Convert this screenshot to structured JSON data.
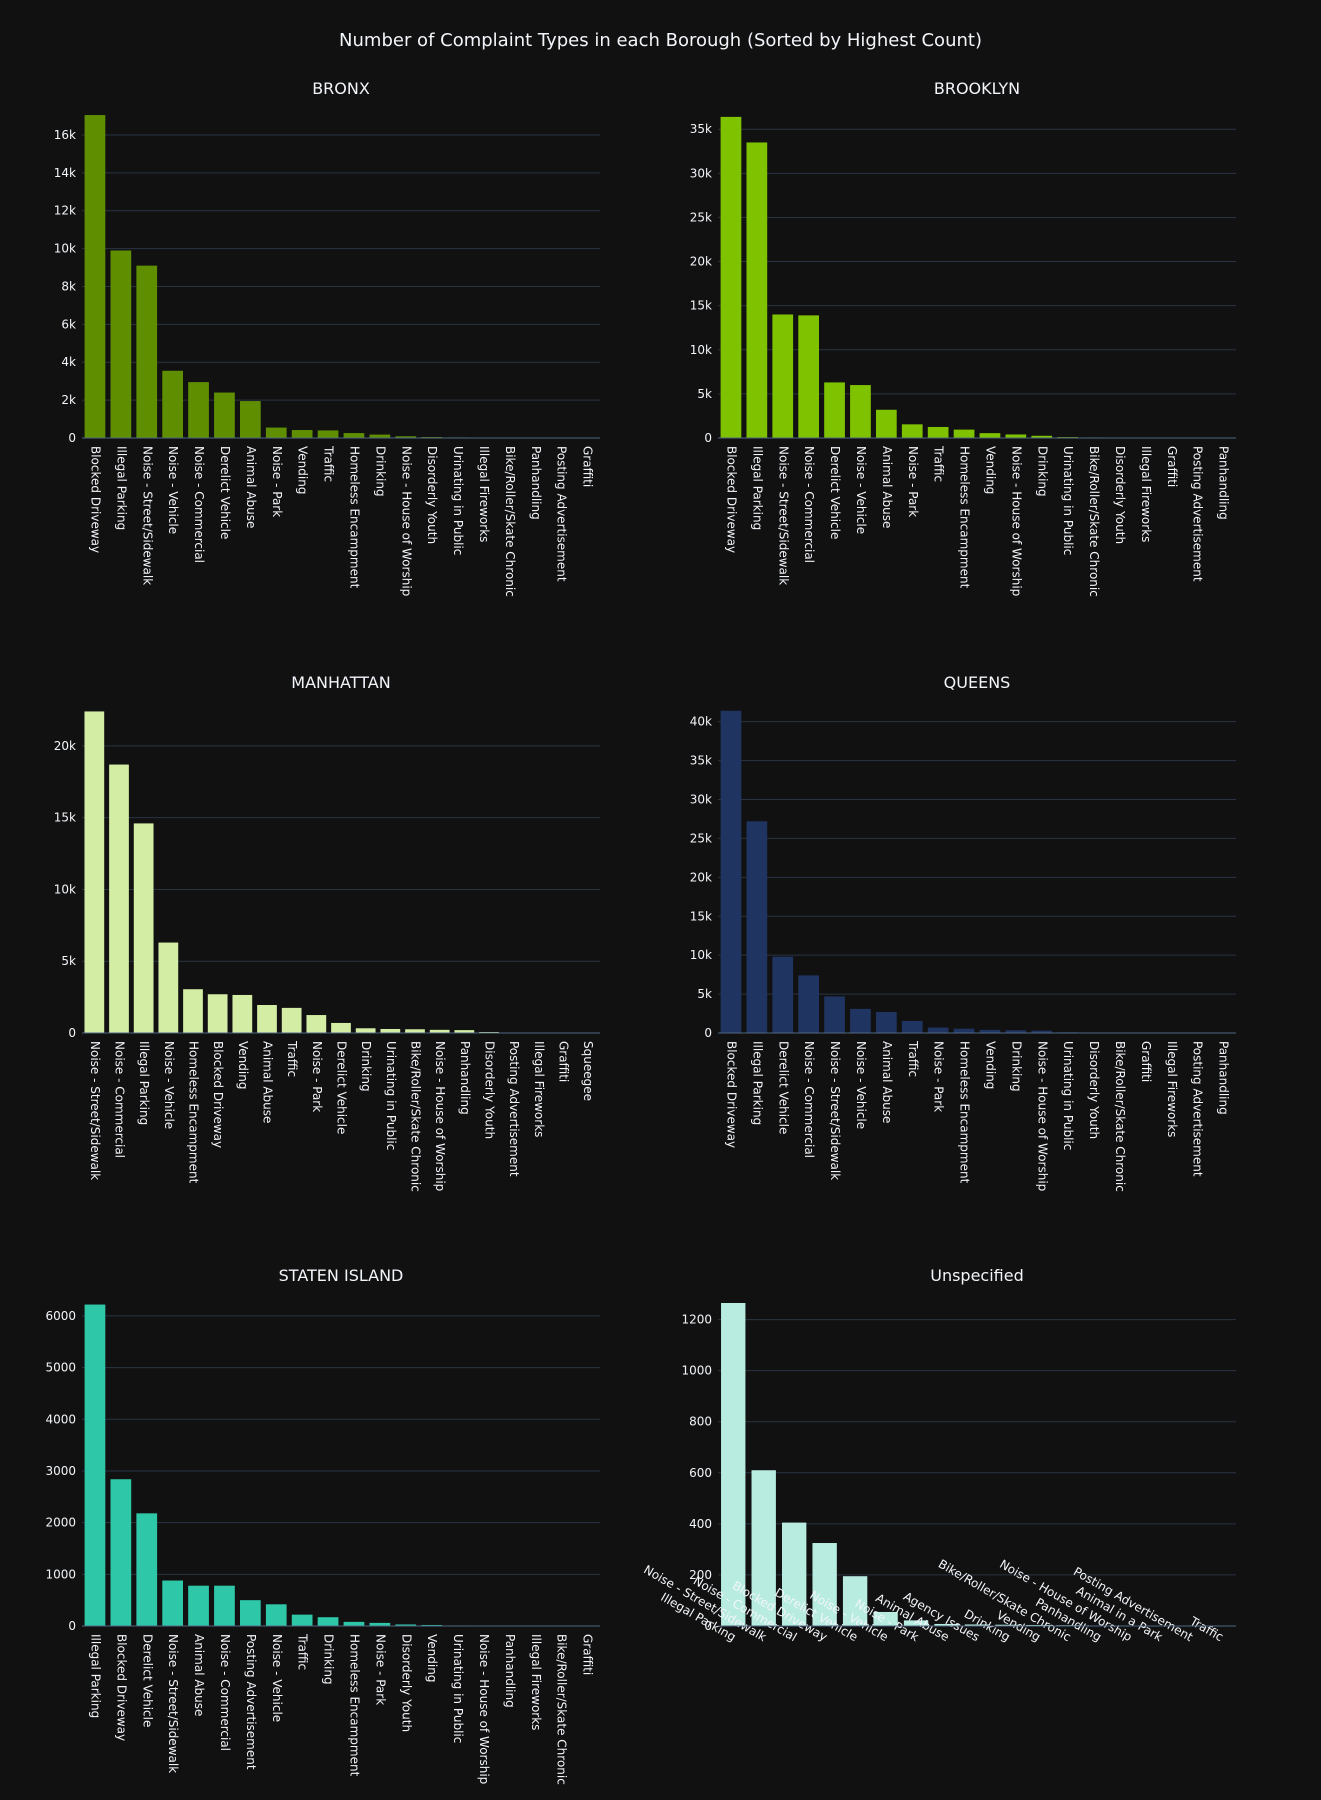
{
  "title": "Number of Complaint Types in each Borough (Sorted by Highest Count)",
  "chart_data": [
    {
      "type": "bar",
      "title": "BRONX",
      "color": "#5f8f00",
      "ylim": [
        0,
        17000
      ],
      "yticks": [
        0,
        2000,
        4000,
        6000,
        8000,
        10000,
        12000,
        14000,
        16000
      ],
      "ytick_labels": [
        "0",
        "2k",
        "4k",
        "6k",
        "8k",
        "10k",
        "12k",
        "14k",
        "16k"
      ],
      "categories": [
        "Blocked Driveway",
        "Illegal Parking",
        "Noise - Street/Sidewalk",
        "Noise - Vehicle",
        "Noise - Commercial",
        "Derelict Vehicle",
        "Animal Abuse",
        "Noise - Park",
        "Vending",
        "Traffic",
        "Homeless Encampment",
        "Drinking",
        "Noise - House of Worship",
        "Disorderly Youth",
        "Urinating in Public",
        "Illegal Fireworks",
        "Bike/Roller/Skate Chronic",
        "Panhandling",
        "Posting Advertisement",
        "Graffiti"
      ],
      "values": [
        17050,
        9900,
        9100,
        3550,
        2950,
        2400,
        1950,
        550,
        420,
        400,
        260,
        180,
        90,
        50,
        30,
        20,
        15,
        10,
        5,
        5
      ],
      "xlabel_angle": -90
    },
    {
      "type": "bar",
      "title": "BROOKLYN",
      "color": "#7fc200",
      "ylim": [
        0,
        36500
      ],
      "yticks": [
        0,
        5000,
        10000,
        15000,
        20000,
        25000,
        30000,
        35000
      ],
      "ytick_labels": [
        "0",
        "5k",
        "10k",
        "15k",
        "20k",
        "25k",
        "30k",
        "35k"
      ],
      "categories": [
        "Blocked Driveway",
        "Illegal Parking",
        "Noise - Street/Sidewalk",
        "Noise - Commercial",
        "Derelict Vehicle",
        "Noise - Vehicle",
        "Animal Abuse",
        "Noise - Park",
        "Traffic",
        "Homeless Encampment",
        "Vending",
        "Noise - House of Worship",
        "Drinking",
        "Urinating in Public",
        "Bike/Roller/Skate Chronic",
        "Disorderly Youth",
        "Illegal Fireworks",
        "Graffiti",
        "Posting Advertisement",
        "Panhandling"
      ],
      "values": [
        36400,
        33500,
        14000,
        13900,
        6300,
        6000,
        3200,
        1550,
        1250,
        950,
        550,
        400,
        250,
        100,
        60,
        40,
        25,
        20,
        10,
        5
      ],
      "xlabel_angle": -90
    },
    {
      "type": "bar",
      "title": "MANHATTAN",
      "color": "#d4eda4",
      "ylim": [
        0,
        22500
      ],
      "yticks": [
        0,
        5000,
        10000,
        15000,
        20000
      ],
      "ytick_labels": [
        "0",
        "5k",
        "10k",
        "15k",
        "20k"
      ],
      "categories": [
        "Noise - Street/Sidewalk",
        "Noise - Commercial",
        "Illegal Parking",
        "Noise - Vehicle",
        "Homeless Encampment",
        "Blocked Driveway",
        "Vending",
        "Animal Abuse",
        "Traffic",
        "Noise - Park",
        "Derelict Vehicle",
        "Drinking",
        "Urinating in Public",
        "Bike/Roller/Skate Chronic",
        "Noise - House of Worship",
        "Panhandling",
        "Disorderly Youth",
        "Posting Advertisement",
        "Illegal Fireworks",
        "Graffiti",
        "Squeegee"
      ],
      "values": [
        22400,
        18700,
        14600,
        6300,
        3050,
        2700,
        2650,
        1950,
        1750,
        1250,
        700,
        330,
        280,
        260,
        220,
        200,
        70,
        30,
        15,
        10,
        5
      ],
      "xlabel_angle": -90
    },
    {
      "type": "bar",
      "title": "QUEENS",
      "color": "#1f3460",
      "ylim": [
        0,
        41500
      ],
      "yticks": [
        0,
        5000,
        10000,
        15000,
        20000,
        25000,
        30000,
        35000,
        40000
      ],
      "ytick_labels": [
        "0",
        "5k",
        "10k",
        "15k",
        "20k",
        "25k",
        "30k",
        "35k",
        "40k"
      ],
      "categories": [
        "Blocked Driveway",
        "Illegal Parking",
        "Derelict Vehicle",
        "Noise - Commercial",
        "Noise - Street/Sidewalk",
        "Noise - Vehicle",
        "Animal Abuse",
        "Traffic",
        "Noise - Park",
        "Homeless Encampment",
        "Vending",
        "Drinking",
        "Noise - House of Worship",
        "Urinating in Public",
        "Disorderly Youth",
        "Bike/Roller/Skate Chronic",
        "Graffiti",
        "Illegal Fireworks",
        "Posting Advertisement",
        "Panhandling"
      ],
      "values": [
        41400,
        27200,
        9800,
        7400,
        4700,
        3100,
        2700,
        1550,
        700,
        550,
        400,
        350,
        300,
        100,
        60,
        40,
        30,
        20,
        10,
        5
      ],
      "xlabel_angle": -90
    },
    {
      "type": "bar",
      "title": "STATEN ISLAND",
      "color": "#2ec8a8",
      "ylim": [
        0,
        6250
      ],
      "yticks": [
        0,
        1000,
        2000,
        3000,
        4000,
        5000,
        6000
      ],
      "ytick_labels": [
        "0",
        "1000",
        "2000",
        "3000",
        "4000",
        "5000",
        "6000"
      ],
      "categories": [
        "Illegal Parking",
        "Blocked Driveway",
        "Derelict Vehicle",
        "Noise - Street/Sidewalk",
        "Animal Abuse",
        "Noise - Commercial",
        "Posting Advertisement",
        "Noise - Vehicle",
        "Traffic",
        "Drinking",
        "Homeless Encampment",
        "Noise - Park",
        "Disorderly Youth",
        "Vending",
        "Urinating in Public",
        "Noise - House of Worship",
        "Panhandling",
        "Illegal Fireworks",
        "Bike/Roller/Skate Chronic",
        "Graffiti"
      ],
      "values": [
        6220,
        2840,
        2180,
        880,
        780,
        780,
        500,
        420,
        220,
        170,
        80,
        60,
        30,
        20,
        10,
        8,
        5,
        4,
        3,
        2
      ],
      "xlabel_angle": -90
    },
    {
      "type": "bar",
      "title": "Unspecified",
      "color": "#b8ece0",
      "ylim": [
        0,
        1265
      ],
      "yticks": [
        0,
        200,
        400,
        600,
        800,
        1000,
        1200
      ],
      "ytick_labels": [
        "0",
        "200",
        "400",
        "600",
        "800",
        "1000",
        "1200"
      ],
      "categories": [
        "Illegal Parking",
        "Noise - Street/Sidewalk",
        "Noise - Commercial",
        "Blocked Driveway",
        "Derelict Vehicle",
        "Noise - Vehicle",
        "Noise - Park",
        "Animal Abuse",
        "Agency Issues",
        "Drinking",
        "Vending",
        "Bike/Roller/Skate Chronic",
        "Panhandling",
        "Noise - House of Worship",
        "Animal in a Park",
        "Posting Advertisement",
        "Traffic"
      ],
      "values": [
        1265,
        610,
        405,
        325,
        195,
        55,
        22,
        8,
        6,
        5,
        4,
        3,
        2,
        2,
        1,
        1,
        1
      ],
      "xlabel_angle": -30
    }
  ]
}
